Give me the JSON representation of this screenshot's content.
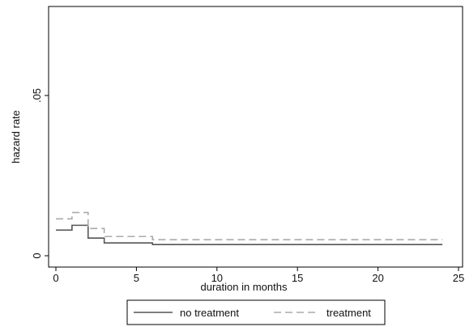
{
  "chart_data": {
    "type": "line",
    "line_shape": "step",
    "xlabel": "duration in months",
    "ylabel": "hazard rate",
    "xlim": [
      0,
      25
    ],
    "ylim": [
      0,
      0.075
    ],
    "x_ticks": [
      0,
      5,
      10,
      15,
      20,
      25
    ],
    "x_tick_labels": [
      "0",
      "5",
      "10",
      "15",
      "20",
      "25"
    ],
    "y_ticks": [
      0,
      0.05
    ],
    "y_tick_labels": [
      "0",
      ".05"
    ],
    "grid": false,
    "legend_position": "bottom",
    "series": [
      {
        "name": "no treatment",
        "style": "solid",
        "color": "#555555",
        "x": [
          0,
          1,
          2,
          3,
          6,
          24
        ],
        "y": [
          0.008,
          0.0095,
          0.0055,
          0.004,
          0.0035,
          0.0035
        ]
      },
      {
        "name": "treatment",
        "style": "dashed",
        "color": "#aaaaaa",
        "x": [
          0,
          1,
          2,
          3,
          6,
          24
        ],
        "y": [
          0.0115,
          0.0135,
          0.0085,
          0.006,
          0.005,
          0.005
        ]
      }
    ]
  }
}
